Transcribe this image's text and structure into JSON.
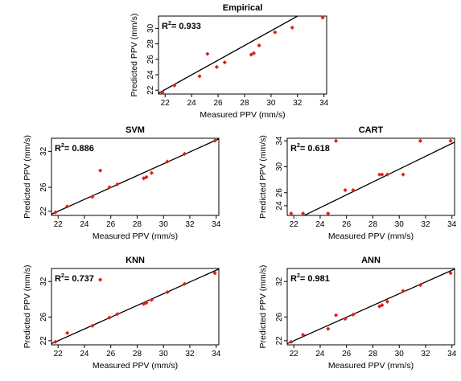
{
  "figure": {
    "series_color": "#e0201b",
    "line_color": "#000000"
  },
  "chart_data": [
    {
      "type": "scatter",
      "title": "Empirical",
      "xlabel": "Measured PPV (mm/s)",
      "ylabel": "Predicted PPV (mm/s)",
      "r2_label": "R",
      "r2_sup": "2",
      "r2_value": "= 0.933",
      "xlim": [
        21.5,
        34.2
      ],
      "ylim": [
        21.5,
        31.6
      ],
      "xticks": [
        22,
        24,
        26,
        28,
        30,
        32,
        34
      ],
      "yticks": [
        22,
        24,
        26,
        28,
        30
      ],
      "fit_line": [
        [
          21.5,
          21.6
        ],
        [
          32.0,
          31.6
        ]
      ],
      "points": [
        [
          21.8,
          21.7
        ],
        [
          22.7,
          22.6
        ],
        [
          24.6,
          23.8
        ],
        [
          25.2,
          26.7
        ],
        [
          25.9,
          25.0
        ],
        [
          26.5,
          25.6
        ],
        [
          28.5,
          26.6
        ],
        [
          28.7,
          26.8
        ],
        [
          29.1,
          27.8
        ],
        [
          30.3,
          29.5
        ],
        [
          31.6,
          30.1
        ],
        [
          33.9,
          31.4
        ]
      ]
    },
    {
      "type": "scatter",
      "title": "SVM",
      "xlabel": "Measured PPV (mm/s)",
      "ylabel": "Predicted PPV (mm/s)",
      "r2_label": "R",
      "r2_sup": "2",
      "r2_value": "= 0.886",
      "xlim": [
        21.5,
        34.2
      ],
      "ylim": [
        21.3,
        34.2
      ],
      "xticks": [
        22,
        24,
        26,
        28,
        30,
        32,
        34
      ],
      "yticks": [
        22,
        26,
        32
      ],
      "fit_line": [
        [
          21.5,
          21.5
        ],
        [
          34.2,
          34.1
        ]
      ],
      "points": [
        [
          21.8,
          21.8
        ],
        [
          22.7,
          22.8
        ],
        [
          24.6,
          24.4
        ],
        [
          25.2,
          28.8
        ],
        [
          25.9,
          26.0
        ],
        [
          26.5,
          26.5
        ],
        [
          28.5,
          27.5
        ],
        [
          28.7,
          27.7
        ],
        [
          29.1,
          28.4
        ],
        [
          30.3,
          30.3
        ],
        [
          31.6,
          31.6
        ],
        [
          33.9,
          33.8
        ]
      ]
    },
    {
      "type": "scatter",
      "title": "CART",
      "xlabel": "Measured PPV (mm/s)",
      "ylabel": "Predicted PPV (mm/s)",
      "r2_label": "R",
      "r2_sup": "2",
      "r2_value": "= 0.618",
      "xlim": [
        21.5,
        34.2
      ],
      "ylim": [
        22.5,
        34.4
      ],
      "xticks": [
        22,
        24,
        26,
        28,
        30,
        32,
        34
      ],
      "yticks": [
        24,
        26,
        30,
        34
      ],
      "fit_line": [
        [
          22.8,
          22.5
        ],
        [
          34.2,
          33.8
        ]
      ],
      "points": [
        [
          21.8,
          22.8
        ],
        [
          22.7,
          22.8
        ],
        [
          24.6,
          22.8
        ],
        [
          25.2,
          34.0
        ],
        [
          25.9,
          26.4
        ],
        [
          26.5,
          26.4
        ],
        [
          28.5,
          28.8
        ],
        [
          28.7,
          28.8
        ],
        [
          29.1,
          28.8
        ],
        [
          30.3,
          28.8
        ],
        [
          31.6,
          34.0
        ],
        [
          33.9,
          34.0
        ]
      ]
    },
    {
      "type": "scatter",
      "title": "KNN",
      "xlabel": "Measured PPV (mm/s)",
      "ylabel": "Predicted PPV (mm/s)",
      "r2_label": "R",
      "r2_sup": "2",
      "r2_value": "= 0.737",
      "xlim": [
        21.5,
        34.2
      ],
      "ylim": [
        21.3,
        34.2
      ],
      "xticks": [
        22,
        24,
        26,
        28,
        30,
        32,
        34
      ],
      "yticks": [
        22,
        26,
        32
      ],
      "fit_line": [
        [
          21.5,
          21.5
        ],
        [
          34.2,
          34.1
        ]
      ],
      "points": [
        [
          21.8,
          21.8
        ],
        [
          22.7,
          23.3
        ],
        [
          24.6,
          24.5
        ],
        [
          25.2,
          32.3
        ],
        [
          25.9,
          25.9
        ],
        [
          26.5,
          26.5
        ],
        [
          28.5,
          28.2
        ],
        [
          28.7,
          28.4
        ],
        [
          29.1,
          28.9
        ],
        [
          30.3,
          30.2
        ],
        [
          31.6,
          31.6
        ],
        [
          33.9,
          33.4
        ]
      ]
    },
    {
      "type": "scatter",
      "title": "ANN",
      "xlabel": "Measured PPV (mm/s)",
      "ylabel": "Predicted PPV (mm/s)",
      "r2_label": "R",
      "r2_sup": "2",
      "r2_value": "= 0.981",
      "xlim": [
        21.5,
        34.2
      ],
      "ylim": [
        21.3,
        34.2
      ],
      "xticks": [
        22,
        24,
        26,
        28,
        30,
        32,
        34
      ],
      "yticks": [
        22,
        26,
        32
      ],
      "fit_line": [
        [
          21.5,
          21.5
        ],
        [
          34.2,
          34.1
        ]
      ],
      "points": [
        [
          21.8,
          21.8
        ],
        [
          22.7,
          23.0
        ],
        [
          24.6,
          24.0
        ],
        [
          25.2,
          26.3
        ],
        [
          25.9,
          25.7
        ],
        [
          26.5,
          26.4
        ],
        [
          28.5,
          27.8
        ],
        [
          28.7,
          28.0
        ],
        [
          29.1,
          28.6
        ],
        [
          30.3,
          30.4
        ],
        [
          31.6,
          31.4
        ],
        [
          33.9,
          33.4
        ]
      ]
    }
  ]
}
